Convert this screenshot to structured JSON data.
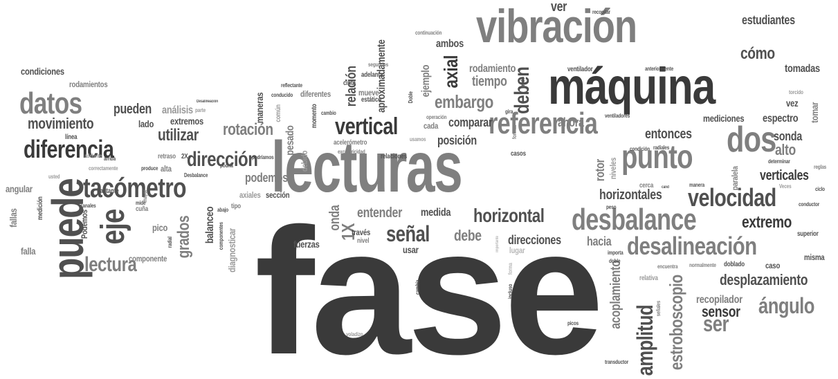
{
  "words": [
    "fase",
    "lecturas",
    "máquina",
    "vibración",
    "puede",
    "punto",
    "referencia",
    "dos",
    "tacómetro",
    "eje",
    "diferencia",
    "datos",
    "desbalance",
    "desalineación",
    "velocidad",
    "horizontal",
    "vertical",
    "dirección",
    "señal",
    "lectura",
    "extremo",
    "ángulo",
    "ser",
    "sensor",
    "amplitud",
    "estroboscopio",
    "desplazamiento",
    "embargo",
    "movimiento",
    "grados",
    "rotación",
    "utilizar",
    "deben",
    "cómo",
    "entonces",
    "verticales",
    "horizontales",
    "alto",
    "sonda",
    "axial",
    "pueden",
    "ver",
    "podemos",
    "entender",
    "debe",
    "hacia",
    "direcciones",
    "comparar",
    "tiempo",
    "rodamiento",
    "ambos",
    "relación",
    "aproximadamente",
    "estudiantes",
    "tomadas",
    "espectro",
    "vez",
    "tomar",
    "mediciones",
    "ahora",
    "posición",
    "onda",
    "medida",
    "1X",
    "acoplamiento",
    "rotor",
    "recopilador",
    "balanceo",
    "condiciones",
    "rodamientos",
    "lado",
    "extremos",
    "análisis",
    "pesado",
    "usar",
    "fuerzas",
    "componente",
    "pico",
    "sección",
    "falla",
    "fallas",
    "angular",
    "diagnosticar",
    "axiales",
    "ejemplo",
    "mueve",
    "cinta",
    "adelanta",
    "estático",
    "cada",
    "través",
    "nivel",
    "lugar",
    "misma",
    "caso",
    "doblado",
    "normalmente",
    "superior",
    "manera",
    "paralela",
    "cerca",
    "niveles",
    "ventilador",
    "ventiladores",
    "anteriormente",
    "recopilar",
    "continuación",
    "segundos",
    "reflectante",
    "conducido",
    "diferentes",
    "maneras",
    "común",
    "momento",
    "cambio",
    "medición",
    "línea",
    "retraso",
    "alta",
    "mayor",
    "cuña",
    "mide",
    "radial",
    "Podemos",
    "bastante",
    "canales",
    "usted",
    "correctamente",
    "arriba",
    "adelante",
    "produce",
    "2X",
    "Desbalance",
    "abajo",
    "tipo",
    "componentes",
    "podría",
    "podríamos",
    "debido",
    "acelerómetro",
    "excentricidad",
    "relaciones",
    "usamos",
    "operación",
    "gira",
    "formas",
    "mide",
    "casos",
    "condición",
    "radiales",
    "determinar",
    "reglas",
    "ciclo",
    "conductor",
    "Veces",
    "peso",
    "importa",
    "doble",
    "encuentra",
    "torcido",
    "transductor",
    "picos",
    "voladizo",
    "incluso",
    "forma",
    "importante",
    "relativa",
    "Doble",
    "Desalineación",
    "parte",
    "señales",
    "cambia",
    "cand"
  ]
}
